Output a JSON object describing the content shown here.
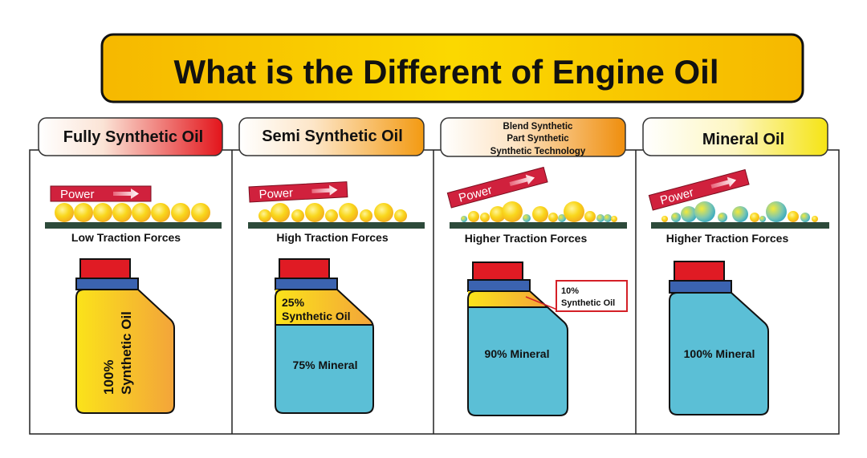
{
  "title": "What is the Different of Engine Oil",
  "colors": {
    "title_bg": "#f7c600",
    "mineral_blue": "#5bbfd6",
    "synthetic_yellow": "#f5c518",
    "cap_red": "#e01b24",
    "band_blue": "#3b63b0",
    "power_red": "#d0213d",
    "ground": "#2d4a3a"
  },
  "panels": [
    {
      "header": "Fully Synthetic Oil",
      "power": "Power",
      "traction": "Low Traction Forces",
      "bottle_labels": [
        "100%",
        "Synthetic Oil"
      ],
      "synthetic_percent": 100
    },
    {
      "header": "Semi Synthetic Oil",
      "power": "Power",
      "traction": "High Traction Forces",
      "bottle_labels": [
        "25%",
        "Synthetic Oil",
        "75% Mineral"
      ],
      "synthetic_percent": 25
    },
    {
      "header_lines": [
        "Blend Synthetic",
        "Part Synthetic",
        "Synthetic Technology"
      ],
      "power": "Power",
      "traction": "Higher Traction Forces",
      "bottle_labels": [
        "10%",
        "Synthetic Oil",
        "90% Mineral"
      ],
      "synthetic_percent": 10
    },
    {
      "header": "Mineral Oil",
      "power": "Power",
      "traction": "Higher Traction Forces",
      "bottle_labels": [
        "100% Mineral"
      ],
      "synthetic_percent": 0
    }
  ]
}
